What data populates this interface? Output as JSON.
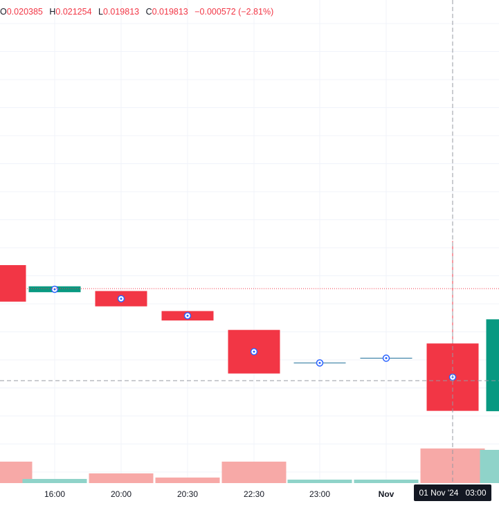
{
  "legend": {
    "open_key": "O",
    "open_value": "0.020385",
    "high_key": "H",
    "high_value": "0.021254",
    "low_key": "L",
    "low_value": "0.019813",
    "close_key": "C",
    "close_value": "0.019813",
    "change": "−0.000572 (−2.81%)"
  },
  "time_axis": {
    "ticks": [
      "16:00",
      "20:00",
      "20:30",
      "22:30",
      "23:00",
      "Nov"
    ],
    "crosshair_label": {
      "date": "01 Nov '24",
      "time": "03:00"
    }
  },
  "colors": {
    "up": "#089981",
    "down": "#f23645",
    "volume_up": "#8fd3c9",
    "volume_down": "#f7a9a7",
    "grid": "#f0f3fa",
    "crosshair": "#9598a1"
  },
  "chart_data": {
    "type": "candlestick",
    "note_fields": [
      "open",
      "high",
      "low",
      "close",
      "volume_rel"
    ],
    "candles": [
      {
        "open": 0.02105,
        "close": 0.02074,
        "volume_rel": 0.62,
        "dir": "down",
        "label": ""
      },
      {
        "open": 0.02082,
        "close": 0.02087,
        "volume_rel": 0.12,
        "dir": "up",
        "label": "16:00"
      },
      {
        "open": 0.02083,
        "close": 0.0207,
        "volume_rel": 0.28,
        "dir": "down",
        "label": "20:00"
      },
      {
        "open": 0.02066,
        "close": 0.02058,
        "volume_rel": 0.16,
        "dir": "down",
        "label": "20:30"
      },
      {
        "open": 0.0205,
        "close": 0.02013,
        "volume_rel": 0.62,
        "dir": "down",
        "label": "22:30"
      },
      {
        "open": 0.02022,
        "close": 0.02022,
        "volume_rel": 0.1,
        "dir": "up",
        "label": "23:00"
      },
      {
        "open": 0.02026,
        "close": 0.02026,
        "volume_rel": 0.1,
        "dir": "up",
        "label": "Nov"
      },
      {
        "open": 0.020385,
        "high": 0.021254,
        "low": 0.019813,
        "close": 0.019813,
        "volume_rel": 1.0,
        "dir": "down",
        "label": "01 Nov '24 03:00"
      },
      {
        "open": 0.01981,
        "close": 0.02059,
        "volume_rel": 0.96,
        "dir": "up",
        "label": ""
      }
    ],
    "y_range": [
      0.0192,
      0.0233
    ]
  }
}
